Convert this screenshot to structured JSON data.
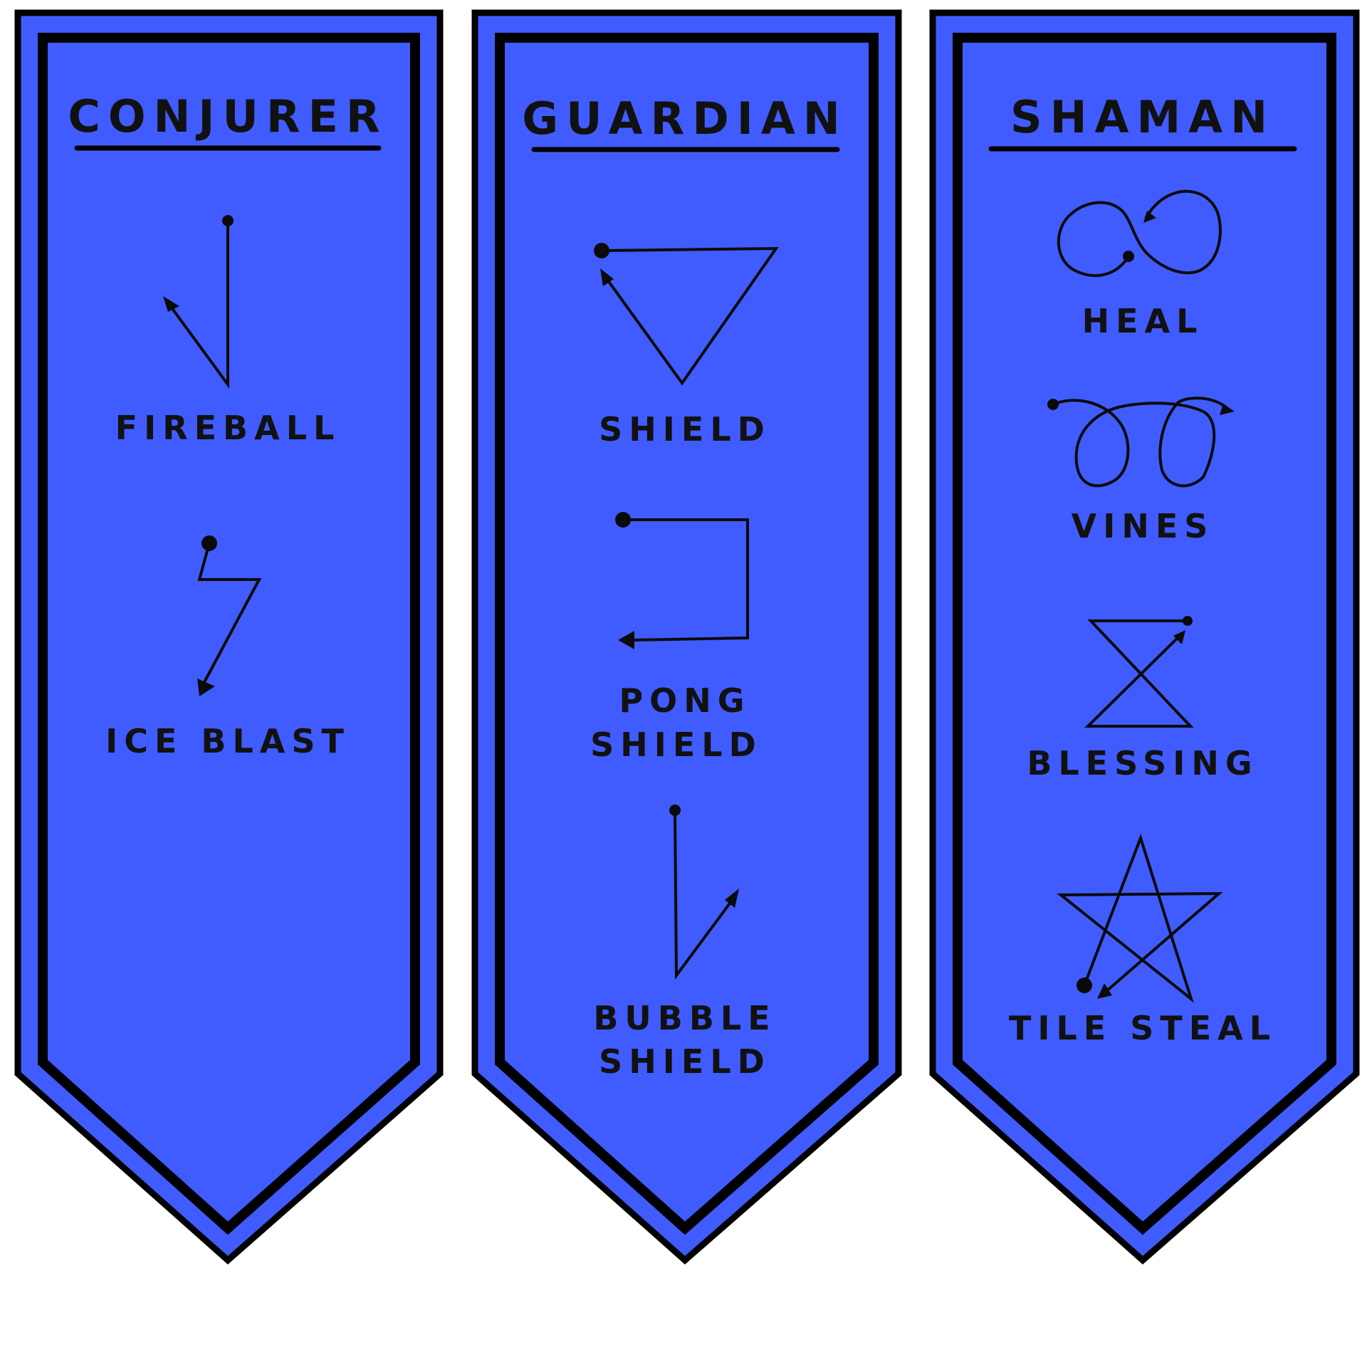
{
  "colors": {
    "banner_fill": "#405cff",
    "outline": "#000000",
    "ink": "#111111",
    "background": "#ffffff"
  },
  "banners": [
    {
      "title": "CONJURER",
      "spells": [
        {
          "lines": [
            "FIREBALL"
          ],
          "glyph_icon": "checkmark-gesture-icon"
        },
        {
          "lines": [
            "ICE BLAST"
          ],
          "glyph_icon": "lightning-zigzag-gesture-icon"
        }
      ]
    },
    {
      "title": "GUARDIAN",
      "spells": [
        {
          "lines": [
            "SHIELD"
          ],
          "glyph_icon": "triangle-gesture-icon"
        },
        {
          "lines": [
            "PONG",
            "SHIELD"
          ],
          "glyph_icon": "bracket-gesture-icon"
        },
        {
          "lines": [
            "BUBBLE",
            "SHIELD"
          ],
          "glyph_icon": "check-up-gesture-icon"
        }
      ]
    },
    {
      "title": "SHAMAN",
      "spells": [
        {
          "lines": [
            "HEAL"
          ],
          "glyph_icon": "infinity-loop-gesture-icon"
        },
        {
          "lines": [
            "VINES"
          ],
          "glyph_icon": "double-loop-gesture-icon"
        },
        {
          "lines": [
            "BLESSING"
          ],
          "glyph_icon": "hourglass-gesture-icon"
        },
        {
          "lines": [
            "TILE STEAL"
          ],
          "glyph_icon": "star-gesture-icon"
        }
      ]
    }
  ]
}
